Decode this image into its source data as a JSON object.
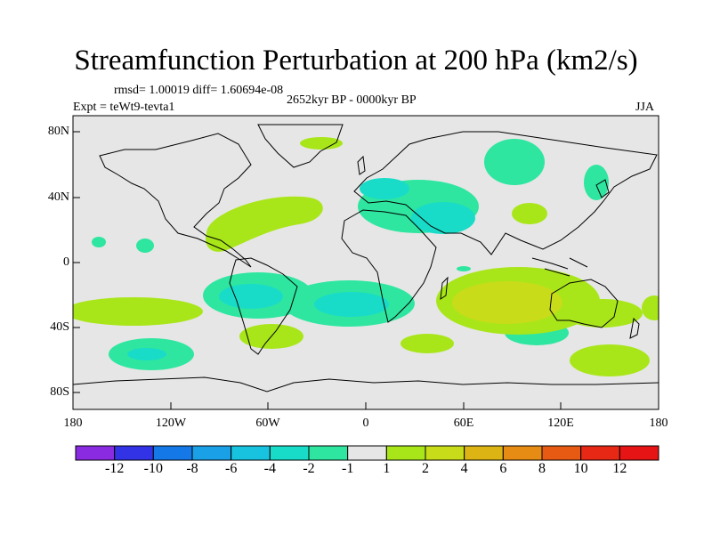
{
  "title": "Streamfunction Perturbation at 200 hPa (km2/s)",
  "stats": "rmsd= 1.00019 diff= 1.60694e-08",
  "period": "2652kyr BP - 0000kyr BP",
  "experiment": "Expt = teWt9-tevta1",
  "season": "JJA",
  "y_ticks": [
    "80N",
    "40N",
    "0",
    "40S",
    "80S"
  ],
  "x_ticks": [
    "180",
    "120W",
    "60W",
    "0",
    "60E",
    "120E",
    "180"
  ],
  "colorbar": {
    "labels": [
      "-12",
      "-10",
      "-8",
      "-6",
      "-4",
      "-2",
      "-1",
      "1",
      "2",
      "4",
      "6",
      "8",
      "10",
      "12"
    ],
    "colors": [
      "#8a2be2",
      "#3232e6",
      "#1478e6",
      "#1aa0e6",
      "#18c3e0",
      "#18dcc8",
      "#2ee6a0",
      "#e6e6e6",
      "#a8e61a",
      "#c8dc1a",
      "#dcb414",
      "#e68c14",
      "#e65a14",
      "#e62814",
      "#e61414"
    ]
  },
  "chart_data": {
    "type": "heatmap",
    "title": "Streamfunction Perturbation at 200 hPa (km2/s)",
    "x_range": [
      -180,
      180
    ],
    "y_range": [
      -90,
      90
    ],
    "contour_levels": [
      -12,
      -10,
      -8,
      -6,
      -4,
      -2,
      -1,
      1,
      2,
      4,
      6,
      8,
      10,
      12
    ],
    "background_color": "#e6e6e6"
  }
}
